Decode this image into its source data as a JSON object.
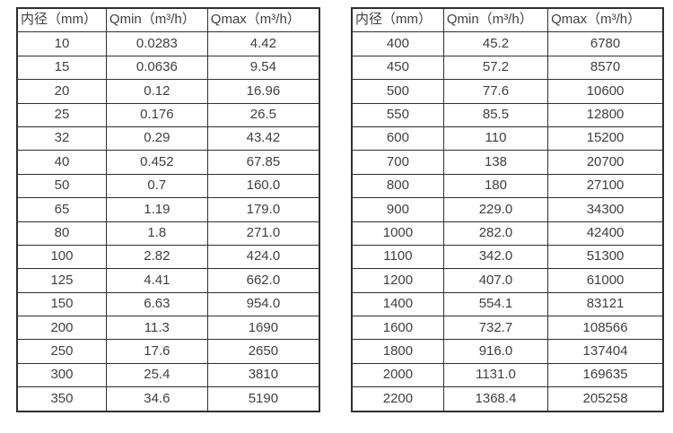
{
  "page": {
    "background_color": "#ffffff",
    "text_color": "#3f3f3f",
    "border_color": "#2f2f2f"
  },
  "chart_data": [
    {
      "type": "table",
      "name": "flow-rates-small-diameters",
      "columns": [
        "内径（mm）",
        "Qmin（m³/h）",
        "Qmax（m³/h）"
      ],
      "rows": [
        [
          "10",
          "0.0283",
          "4.42"
        ],
        [
          "15",
          "0.0636",
          "9.54"
        ],
        [
          "20",
          "0.12",
          "16.96"
        ],
        [
          "25",
          "0.176",
          "26.5"
        ],
        [
          "32",
          "0.29",
          "43.42"
        ],
        [
          "40",
          "0.452",
          "67.85"
        ],
        [
          "50",
          "0.7",
          "160.0"
        ],
        [
          "65",
          "1.19",
          "179.0"
        ],
        [
          "80",
          "1.8",
          "271.0"
        ],
        [
          "100",
          "2.82",
          "424.0"
        ],
        [
          "125",
          "4.41",
          "662.0"
        ],
        [
          "150",
          "6.63",
          "954.0"
        ],
        [
          "200",
          "11.3",
          "1690"
        ],
        [
          "250",
          "17.6",
          "2650"
        ],
        [
          "300",
          "25.4",
          "3810"
        ],
        [
          "350",
          "34.6",
          "5190"
        ]
      ]
    },
    {
      "type": "table",
      "name": "flow-rates-large-diameters",
      "columns": [
        "内径（mm）",
        "Qmin（m³/h）",
        "Qmax（m³/h）"
      ],
      "rows": [
        [
          "400",
          "45.2",
          "6780"
        ],
        [
          "450",
          "57.2",
          "8570"
        ],
        [
          "500",
          "77.6",
          "10600"
        ],
        [
          "550",
          "85.5",
          "12800"
        ],
        [
          "600",
          "110",
          "15200"
        ],
        [
          "700",
          "138",
          "20700"
        ],
        [
          "800",
          "180",
          "27100"
        ],
        [
          "900",
          "229.0",
          "34300"
        ],
        [
          "1000",
          "282.0",
          "42400"
        ],
        [
          "1100",
          "342.0",
          "51300"
        ],
        [
          "1200",
          "407.0",
          "61000"
        ],
        [
          "1400",
          "554.1",
          "83121"
        ],
        [
          "1600",
          "732.7",
          "108566"
        ],
        [
          "1800",
          "916.0",
          "137404"
        ],
        [
          "2000",
          "1131.0",
          "169635"
        ],
        [
          "2200",
          "1368.4",
          "205258"
        ]
      ]
    }
  ]
}
